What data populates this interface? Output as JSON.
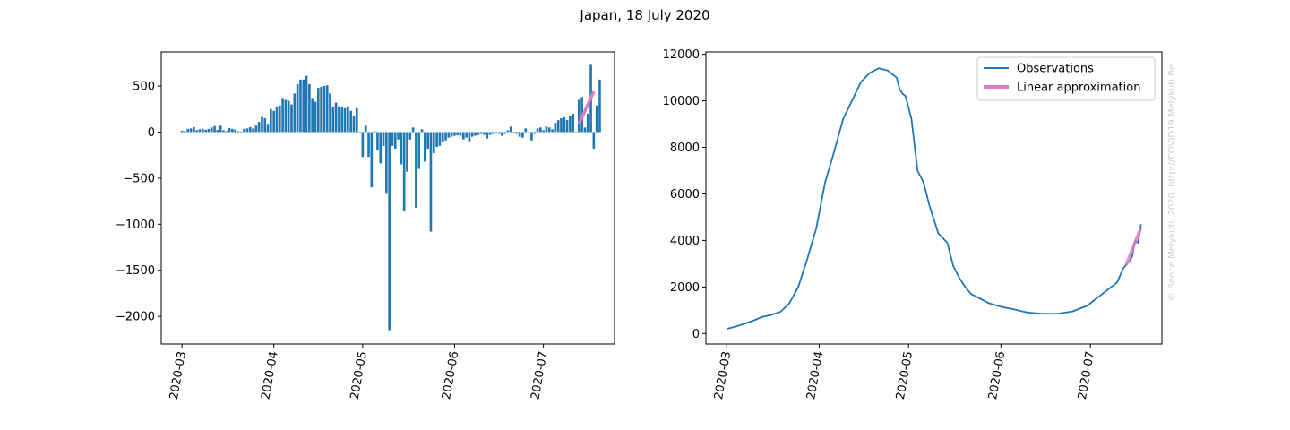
{
  "figure": {
    "title": "Japan, 18 July 2020",
    "watermark": "© Bence Melykuti, 2020. http://COVID19.Melykuti.Be"
  },
  "colors": {
    "bar": "#1f77b4",
    "observations": "#1f77b4",
    "approximation": "#e377c2",
    "watermark": "#cccccc"
  },
  "chart_data": [
    {
      "type": "bar",
      "xlabel": "",
      "ylabel": "",
      "x_ticks": [
        "2020-03",
        "2020-04",
        "2020-05",
        "2020-06",
        "2020-07"
      ],
      "x_tick_dates": [
        "2020-03-01",
        "2020-04-01",
        "2020-05-01",
        "2020-06-01",
        "2020-07-01"
      ],
      "y_ticks": [
        -2000,
        -1500,
        -1000,
        -500,
        0,
        500
      ],
      "y_tick_labels": [
        "−2000",
        "−1500",
        "−1000",
        "−500",
        "0",
        "500"
      ],
      "xlim": [
        "2020-02-23",
        "2020-07-25"
      ],
      "ylim": [
        -2300,
        870
      ],
      "grid": false,
      "legend": "none",
      "series": [
        {
          "start_date": "2020-03-01",
          "values": [
            15,
            10,
            35,
            40,
            55,
            20,
            30,
            35,
            25,
            35,
            50,
            65,
            25,
            70,
            20,
            10,
            45,
            35,
            30,
            10,
            5,
            35,
            40,
            55,
            40,
            70,
            110,
            165,
            150,
            90,
            250,
            230,
            280,
            290,
            370,
            350,
            340,
            300,
            420,
            520,
            570,
            570,
            610,
            520,
            370,
            330,
            480,
            490,
            500,
            510,
            420,
            270,
            320,
            280,
            270,
            260,
            280,
            230,
            180,
            260,
            0,
            -270,
            70,
            -270,
            -600,
            10,
            -200,
            -340,
            -150,
            -670,
            -2150,
            -150,
            -180,
            -80,
            -350,
            -860,
            -430,
            -80,
            50,
            -820,
            -400,
            30,
            -320,
            -180,
            -1080,
            -230,
            -160,
            -150,
            -110,
            -90,
            -60,
            -50,
            -40,
            -35,
            -40,
            -80,
            -60,
            -100,
            -50,
            -40,
            -30,
            -20,
            -30,
            -70,
            -30,
            -20,
            -10,
            -20,
            -40,
            -20,
            20,
            60,
            -10,
            -20,
            -50,
            -60,
            40,
            -10,
            -90,
            -20,
            40,
            50,
            20,
            60,
            50,
            30,
            100,
            130,
            150,
            160,
            130,
            170,
            200,
            -5,
            350,
            380,
            50,
            200,
            730,
            -180,
            290,
            570
          ]
        },
        {
          "name": "",
          "type": "line",
          "points": [
            [
              "2020-07-13",
              90
            ],
            [
              "2020-07-18",
              440
            ]
          ]
        }
      ]
    },
    {
      "type": "line",
      "xlabel": "",
      "ylabel": "",
      "x_ticks": [
        "2020-03",
        "2020-04",
        "2020-05",
        "2020-06",
        "2020-07"
      ],
      "x_tick_dates": [
        "2020-03-01",
        "2020-04-01",
        "2020-05-01",
        "2020-06-01",
        "2020-07-01"
      ],
      "y_ticks": [
        0,
        2000,
        4000,
        6000,
        8000,
        10000,
        12000
      ],
      "xlim": [
        "2020-02-23",
        "2020-07-25"
      ],
      "ylim": [
        -450,
        12100
      ],
      "grid": false,
      "legend": "top-right",
      "series": [
        {
          "name": "Observations",
          "x": [
            "2020-03-01",
            "2020-03-04",
            "2020-03-07",
            "2020-03-10",
            "2020-03-13",
            "2020-03-16",
            "2020-03-19",
            "2020-03-22",
            "2020-03-25",
            "2020-03-28",
            "2020-03-31",
            "2020-04-03",
            "2020-04-06",
            "2020-04-09",
            "2020-04-12",
            "2020-04-15",
            "2020-04-18",
            "2020-04-21",
            "2020-04-24",
            "2020-04-27",
            "2020-04-28",
            "2020-04-29",
            "2020-04-30",
            "2020-05-02",
            "2020-05-04",
            "2020-05-06",
            "2020-05-08",
            "2020-05-09",
            "2020-05-11",
            "2020-05-14",
            "2020-05-16",
            "2020-05-18",
            "2020-05-20",
            "2020-05-22",
            "2020-05-25",
            "2020-05-28",
            "2020-06-01",
            "2020-06-05",
            "2020-06-10",
            "2020-06-15",
            "2020-06-20",
            "2020-06-25",
            "2020-06-30",
            "2020-07-03",
            "2020-07-06",
            "2020-07-10",
            "2020-07-12",
            "2020-07-14",
            "2020-07-15",
            "2020-07-16",
            "2020-07-17",
            "2020-07-18"
          ],
          "y": [
            200,
            300,
            420,
            560,
            720,
            800,
            930,
            1300,
            2000,
            3200,
            4500,
            6500,
            7800,
            9200,
            10000,
            10800,
            11200,
            11400,
            11300,
            11000,
            10500,
            10300,
            10200,
            9200,
            7000,
            6500,
            5500,
            5100,
            4300,
            3900,
            2900,
            2400,
            2000,
            1700,
            1500,
            1300,
            1150,
            1050,
            900,
            850,
            850,
            950,
            1200,
            1500,
            1800,
            2200,
            2800,
            3100,
            3300,
            4000,
            3900,
            4700
          ]
        },
        {
          "name": "Linear approximation",
          "x": [
            "2020-07-13",
            "2020-07-18"
          ],
          "y": [
            2950,
            4550
          ]
        }
      ]
    }
  ]
}
